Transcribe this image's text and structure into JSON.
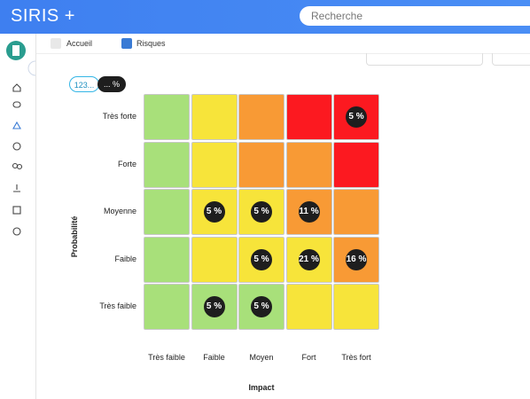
{
  "header": {
    "title": "SIRIS +",
    "search_placeholder": "Recherche"
  },
  "breadcrumb": [
    "Accueil",
    "Risques"
  ],
  "toggle": [
    "123...",
    "... %"
  ],
  "matrix": {
    "y_title": "Probabilité",
    "x_title": "Impact",
    "rows": [
      "Très forte",
      "Forte",
      "Moyenne",
      "Faible",
      "Très faible"
    ],
    "columns": [
      "Très faible",
      "Faible",
      "Moyen",
      "Fort",
      "Très fort"
    ],
    "cells": [
      [
        {
          "color": "#a8e07a"
        },
        {
          "color": "#f7e43a"
        },
        {
          "color": "#f89a35"
        },
        {
          "color": "#fc1920"
        },
        {
          "color": "#fc1920",
          "label": "5 %"
        }
      ],
      [
        {
          "color": "#a8e07a"
        },
        {
          "color": "#f7e43a"
        },
        {
          "color": "#f89a35"
        },
        {
          "color": "#f89a35"
        },
        {
          "color": "#fc1920"
        }
      ],
      [
        {
          "color": "#a8e07a"
        },
        {
          "color": "#f7e43a",
          "label": "5 %"
        },
        {
          "color": "#f7e43a",
          "label": "5 %"
        },
        {
          "color": "#f89a35",
          "label": "11 %"
        },
        {
          "color": "#f89a35"
        }
      ],
      [
        {
          "color": "#a8e07a"
        },
        {
          "color": "#f7e43a"
        },
        {
          "color": "#f7e43a",
          "label": "5 %"
        },
        {
          "color": "#f7e43a",
          "label": "21 %"
        },
        {
          "color": "#f89a35",
          "label": "16 %"
        }
      ],
      [
        {
          "color": "#a8e07a"
        },
        {
          "color": "#a8e07a",
          "label": "5 %"
        },
        {
          "color": "#a8e07a",
          "label": "5 %"
        },
        {
          "color": "#f7e43a"
        },
        {
          "color": "#f7e43a"
        }
      ]
    ]
  }
}
